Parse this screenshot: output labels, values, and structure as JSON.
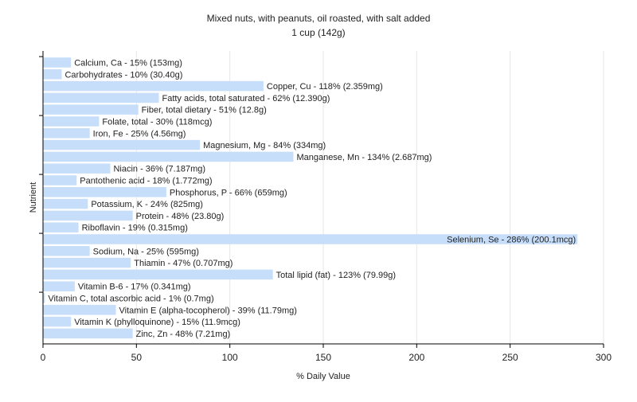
{
  "chart_data": {
    "type": "bar",
    "orientation": "horizontal",
    "title": "Mixed nuts, with peanuts, oil roasted, with salt added",
    "subtitle": "1 cup (142g)",
    "xlabel": "% Daily Value",
    "ylabel": "Nutrient",
    "xlim": [
      0,
      300
    ],
    "xticks": [
      0,
      50,
      100,
      150,
      200,
      250,
      300
    ],
    "grid": "vertical",
    "bar_color": "#c6defa",
    "categories": [
      "Calcium, Ca",
      "Carbohydrates",
      "Copper, Cu",
      "Fatty acids, total saturated",
      "Fiber, total dietary",
      "Folate, total",
      "Iron, Fe",
      "Magnesium, Mg",
      "Manganese, Mn",
      "Niacin",
      "Pantothenic acid",
      "Phosphorus, P",
      "Potassium, K",
      "Protein",
      "Riboflavin",
      "Selenium, Se",
      "Sodium, Na",
      "Thiamin",
      "Total lipid (fat)",
      "Vitamin B-6",
      "Vitamin C, total ascorbic acid",
      "Vitamin E (alpha-tocopherol)",
      "Vitamin K (phylloquinone)",
      "Zinc, Zn"
    ],
    "values": [
      15,
      10,
      118,
      62,
      51,
      30,
      25,
      84,
      134,
      36,
      18,
      66,
      24,
      48,
      19,
      286,
      25,
      47,
      123,
      17,
      1,
      39,
      15,
      48
    ],
    "labels": [
      "Calcium, Ca - 15% (153mg)",
      "Carbohydrates - 10% (30.40g)",
      "Copper, Cu - 118% (2.359mg)",
      "Fatty acids, total saturated - 62% (12.390g)",
      "Fiber, total dietary - 51% (12.8g)",
      "Folate, total - 30% (118mcg)",
      "Iron, Fe - 25% (4.56mg)",
      "Magnesium, Mg - 84% (334mg)",
      "Manganese, Mn - 134% (2.687mg)",
      "Niacin - 36% (7.187mg)",
      "Pantothenic acid - 18% (1.772mg)",
      "Phosphorus, P - 66% (659mg)",
      "Potassium, K - 24% (825mg)",
      "Protein - 48% (23.80g)",
      "Riboflavin - 19% (0.315mg)",
      "Selenium, Se - 286% (200.1mcg)",
      "Sodium, Na - 25% (595mg)",
      "Thiamin - 47% (0.707mg)",
      "Total lipid (fat) - 123% (79.99g)",
      "Vitamin B-6 - 17% (0.341mg)",
      "Vitamin C, total ascorbic acid - 1% (0.7mg)",
      "Vitamin E (alpha-tocopherol) - 39% (11.79mg)",
      "Vitamin K (phylloquinone) - 15% (11.9mcg)",
      "Zinc, Zn - 48% (7.21mg)"
    ]
  }
}
